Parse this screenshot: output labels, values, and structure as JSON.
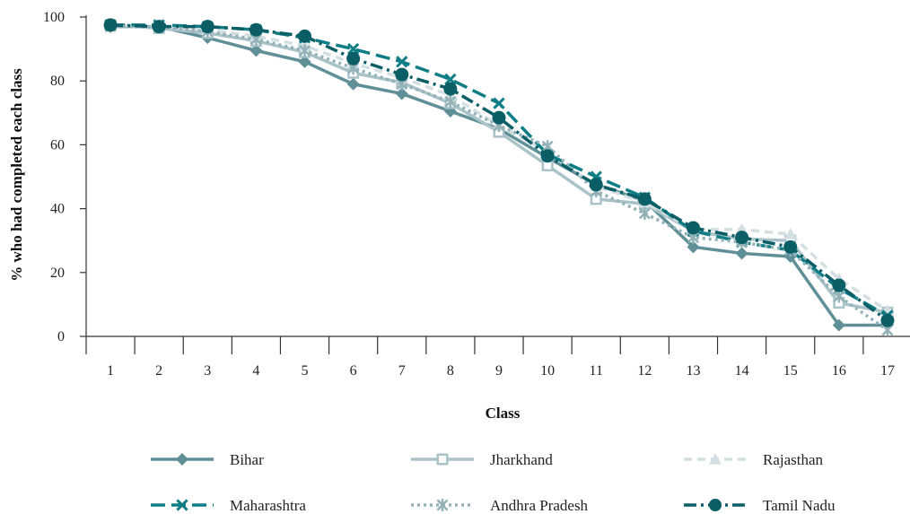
{
  "chart_data": {
    "type": "line",
    "title": "",
    "xlabel": "Class",
    "ylabel": "% who had completed each class",
    "x": [
      1,
      2,
      3,
      4,
      5,
      6,
      7,
      8,
      9,
      10,
      11,
      12,
      13,
      14,
      15,
      16,
      17
    ],
    "ylim": [
      0,
      100
    ],
    "yticks": [
      0,
      20,
      40,
      60,
      80,
      100
    ],
    "grid": false,
    "legend_position": "bottom",
    "series": [
      {
        "name": "Bihar",
        "color": "#5f8f97",
        "dash": "solid",
        "marker": "diamond",
        "values": [
          97,
          97,
          93.5,
          89.5,
          86,
          79,
          76,
          70.5,
          65,
          56,
          47.5,
          42.5,
          28,
          26,
          25,
          3.5,
          3.5
        ]
      },
      {
        "name": "Jharkhand",
        "color": "#a9c3c8",
        "dash": "solid",
        "marker": "square",
        "values": [
          97.5,
          96.5,
          95,
          92.5,
          89,
          82.5,
          79.5,
          73,
          64,
          53.5,
          43,
          41.5,
          33,
          30.5,
          30,
          10.5,
          7.5
        ]
      },
      {
        "name": "Rajasthan",
        "color": "#d3dfe2",
        "dash": "dash",
        "marker": "triangle",
        "values": [
          97.5,
          97,
          96,
          94,
          91,
          85.5,
          81,
          75.5,
          66,
          58,
          47,
          42,
          33.5,
          33.5,
          32,
          18,
          8
        ]
      },
      {
        "name": "Maharashtra",
        "color": "#0f7d86",
        "dash": "longdash",
        "marker": "x",
        "values": [
          97.5,
          97.5,
          97,
          96,
          93.5,
          90,
          86,
          80.5,
          73,
          57,
          50,
          43.5,
          33,
          29.5,
          27,
          15,
          6.5
        ]
      },
      {
        "name": "Andhra Pradesh",
        "color": "#93b2b8",
        "dash": "dot",
        "marker": "asterisk",
        "values": [
          97,
          97,
          95.5,
          93,
          89.5,
          84,
          79,
          73.5,
          66,
          59.5,
          45.5,
          38.5,
          31,
          29.5,
          27,
          12.5,
          2
        ]
      },
      {
        "name": "Tamil Nadu",
        "color": "#0b5e66",
        "dash": "dashdot",
        "marker": "circle",
        "values": [
          97.5,
          97,
          97,
          96,
          94,
          87,
          82,
          77.5,
          68.5,
          56.5,
          47.5,
          43,
          34,
          31,
          28,
          16,
          5
        ]
      }
    ]
  }
}
